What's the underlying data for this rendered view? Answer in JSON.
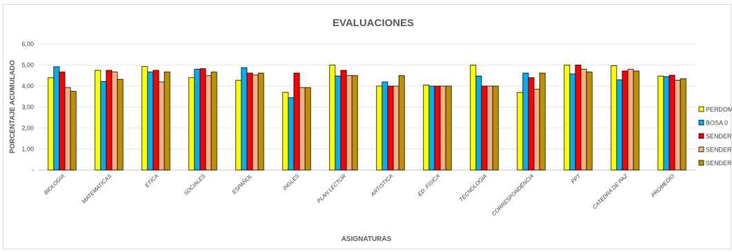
{
  "chart_data": {
    "type": "bar",
    "title": "EVALUACIONES",
    "xlabel": "ASIGNATURAS",
    "ylabel": "PORCENTAJE ACUMULADO",
    "ylim": [
      0,
      6
    ],
    "yticks": [
      "-",
      "1,00",
      "2,00",
      "3,00",
      "4,00",
      "5,00",
      "6,00"
    ],
    "grid": true,
    "legend_position": "right",
    "categories": [
      "BIOLOGIA",
      "MATEMATICAS",
      "ETICA",
      "SOCIALES",
      "ESPAÑOL",
      "INGLES",
      "PLAN LECTOR",
      "ARTISTICA",
      "ED. FISICA",
      "TECNOLOGIA",
      "CORRESPONDENCIA",
      "PPT",
      "CATEDRA DE PAZ",
      "PROMEDIO"
    ],
    "series": [
      {
        "name": "PERDOMO (",
        "color": "#FFFF00",
        "values": [
          4.4,
          4.75,
          4.93,
          4.4,
          4.27,
          3.7,
          5.0,
          4.0,
          4.05,
          5.0,
          3.7,
          5.0,
          4.97,
          4.48
        ]
      },
      {
        "name": "BOSA 0",
        "color": "#00B0F0",
        "values": [
          4.92,
          4.22,
          4.67,
          4.8,
          4.88,
          3.45,
          4.48,
          4.2,
          4.0,
          4.48,
          4.62,
          4.58,
          4.3,
          4.45
        ]
      },
      {
        "name": "SENDEROS (",
        "color": "#FF0000",
        "values": [
          4.67,
          4.75,
          4.75,
          4.83,
          4.62,
          4.62,
          4.75,
          4.0,
          4.0,
          4.0,
          4.4,
          5.0,
          4.72,
          4.52
        ]
      },
      {
        "name": "SENDEROS F",
        "color": "#F4B183",
        "values": [
          3.93,
          4.67,
          4.2,
          4.5,
          4.53,
          3.93,
          4.5,
          4.0,
          4.0,
          4.0,
          3.85,
          4.8,
          4.8,
          4.28
        ]
      },
      {
        "name": "SENDEROS J",
        "color": "#BF9000",
        "values": [
          3.75,
          4.32,
          4.67,
          4.67,
          4.62,
          3.93,
          4.5,
          4.5,
          4.0,
          4.0,
          4.62,
          4.67,
          4.72,
          4.35
        ]
      }
    ]
  }
}
